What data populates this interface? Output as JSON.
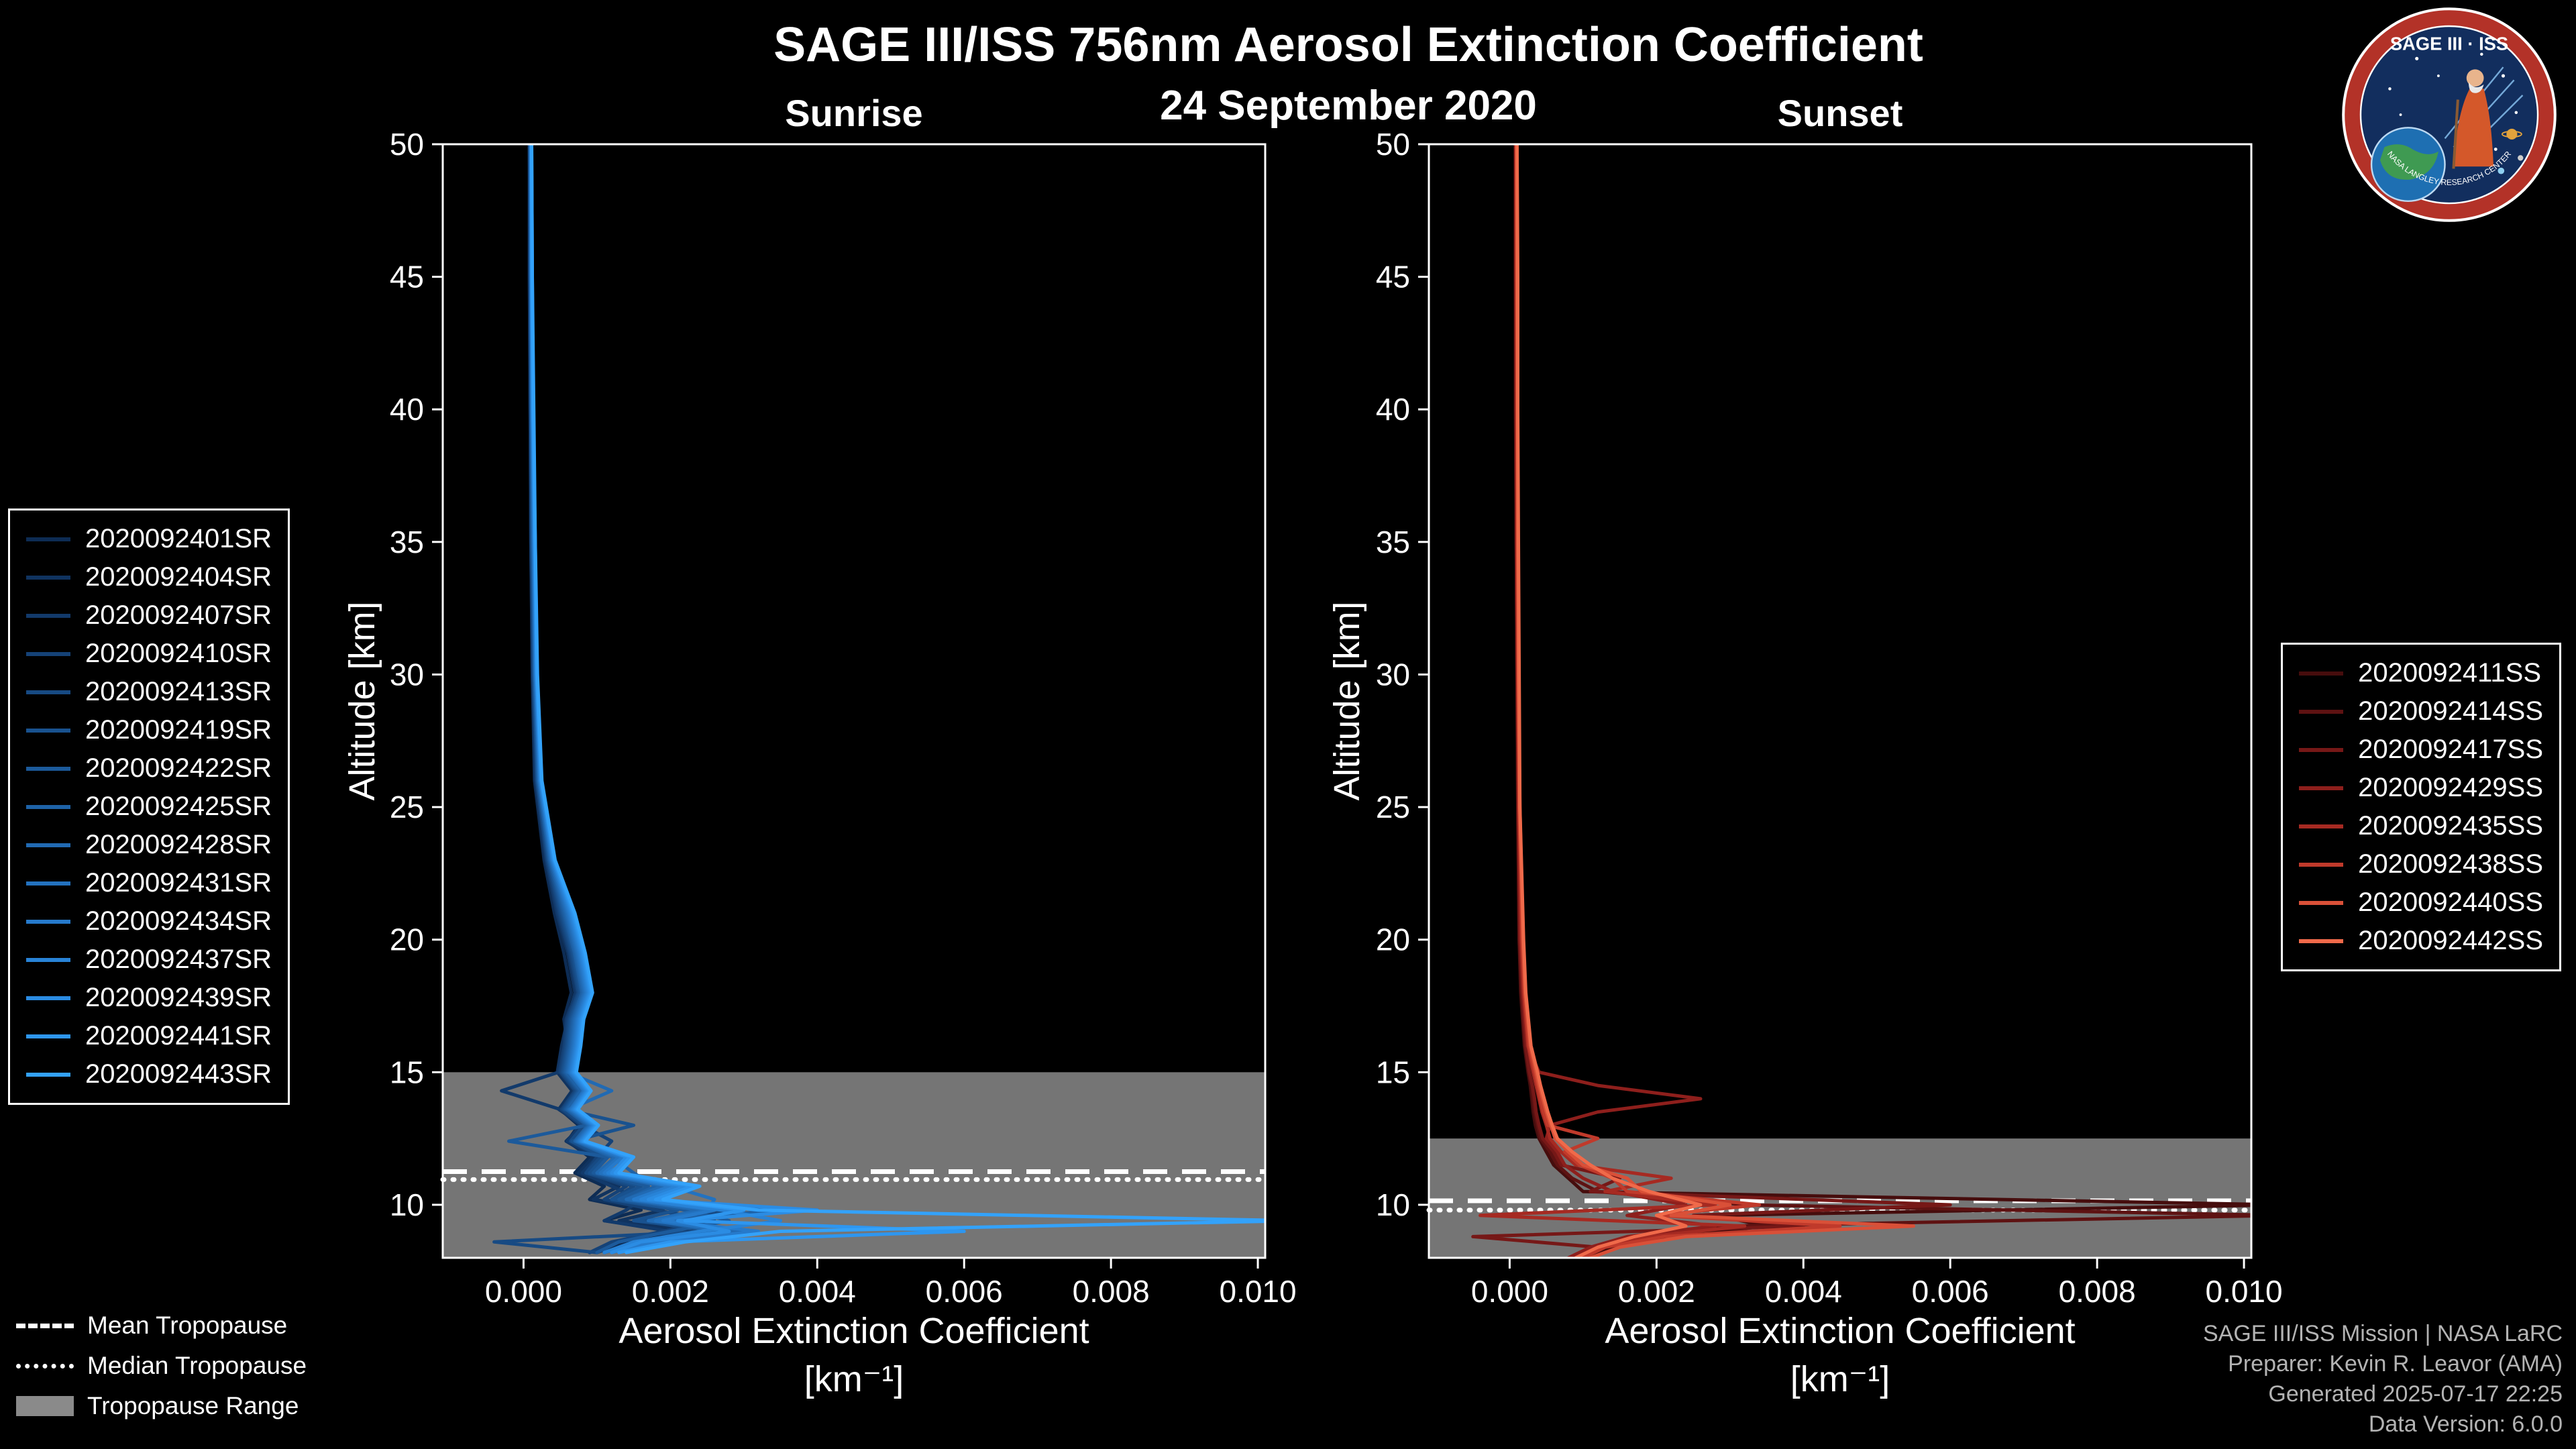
{
  "header": {
    "title": "SAGE III/ISS 756nm Aerosol Extinction Coefficient",
    "date": "24 September 2020"
  },
  "logo": {
    "title": "SAGE III · ISS",
    "arc_text": "NASA LANGLEY RESEARCH CENTER"
  },
  "tropopause_legend": {
    "mean": "Mean Tropopause",
    "median": "Median Tropopause",
    "range": "Tropopause Range"
  },
  "credits": {
    "line1": "SAGE III/ISS Mission | NASA LaRC",
    "line2": "Preparer: Kevin R. Leavor (AMA)",
    "line3": "Generated 2025-07-17 22:25",
    "line4": "Data Version: 6.0.0"
  },
  "chart_data": [
    {
      "id": "sunrise",
      "type": "line",
      "title": "Sunrise",
      "xlabel": "Aerosol Extinction Coefficient",
      "xunit": "[km⁻¹]",
      "ylabel": "Altitude [km]",
      "xlim": [
        -0.0011,
        0.0101
      ],
      "ylim": [
        8,
        50
      ],
      "xticks": [
        0,
        0.002,
        0.004,
        0.006,
        0.008,
        0.01
      ],
      "xtick_labels": [
        "0.000",
        "0.002",
        "0.004",
        "0.006",
        "0.008",
        "0.010"
      ],
      "yticks": [
        10,
        15,
        20,
        25,
        30,
        35,
        40,
        45,
        50
      ],
      "ytick_labels": [
        "10",
        "15",
        "20",
        "25",
        "30",
        "35",
        "40",
        "45",
        "50"
      ],
      "grid": false,
      "legend_position": "outside-left",
      "line_color_ramp": [
        "#0d2c54",
        "#33a2fa"
      ],
      "tropopause": {
        "mean_km": 11.25,
        "median_km": 10.95,
        "range_km": [
          8,
          15
        ],
        "range_color": "#8a8a8a",
        "line_color": "#ffffff"
      },
      "alt_km": [
        50,
        45,
        40,
        35,
        30,
        26,
        23,
        21,
        19.5,
        18,
        17,
        16,
        15,
        14.3,
        13.6,
        13,
        12.4,
        11.8,
        11.2,
        10.7,
        10.2,
        9.8,
        9.4,
        9.0,
        8.6,
        8.2
      ],
      "series": [
        {
          "name": "2020092401SR",
          "color": "#0d2c54",
          "ext": [
            8e-05,
            8e-05,
            9e-05,
            0.0001,
            0.00012,
            0.00015,
            0.00028,
            0.00042,
            0.00055,
            0.00065,
            0.00055,
            0.0006,
            0.0005,
            0.0007,
            0.0005,
            0.00075,
            0.0006,
            0.0009,
            0.0007,
            0.0011,
            0.0009,
            0.0016,
            0.0011,
            0.0021,
            0.0014,
            0.001
          ]
        },
        {
          "name": "2020092404SR",
          "color": "#10335f",
          "ext": [
            8e-05,
            8e-05,
            9e-05,
            0.0001,
            0.00012,
            0.00016,
            0.0003,
            0.00045,
            0.0006,
            0.0007,
            0.0006,
            0.00052,
            0.00046,
            0.00066,
            0.00048,
            0.0008,
            0.00058,
            0.00095,
            0.00075,
            0.0013,
            0.00095,
            0.0019,
            0.0013,
            0.0024,
            0.0015,
            0.0011
          ]
        },
        {
          "name": "2020092407SR",
          "color": "#123a6b",
          "ext": [
            8e-05,
            9e-05,
            0.0001,
            0.0001,
            0.00013,
            0.00017,
            0.00031,
            0.00046,
            0.00062,
            0.00072,
            0.00058,
            0.00055,
            0.00048,
            -0.0003,
            0.0005,
            0.00078,
            0.0006,
            0.001,
            0.0008,
            0.0012,
            0.0016,
            0.0014,
            0.0011,
            0.002,
            0.0013,
            0.0009
          ]
        },
        {
          "name": "2020092410SR",
          "color": "#154277",
          "ext": [
            8e-05,
            9e-05,
            0.0001,
            0.00011,
            0.00013,
            0.00018,
            0.00032,
            0.00048,
            0.00063,
            0.00074,
            0.0006,
            0.00056,
            0.0005,
            0.0007,
            0.00052,
            0.0008,
            0.0012,
            0.001,
            0.00085,
            0.0014,
            0.0011,
            0.0018,
            0.0026,
            0.0019,
            0.0012,
            0.0009
          ]
        },
        {
          "name": "2020092413SR",
          "color": "#174a83",
          "ext": [
            9e-05,
            9e-05,
            0.0001,
            0.00011,
            0.00014,
            0.00018,
            0.00033,
            0.0005,
            0.00065,
            0.00075,
            0.00062,
            0.00058,
            0.00052,
            0.00072,
            0.00054,
            0.00082,
            0.00064,
            0.00105,
            0.00085,
            0.0015,
            0.0012,
            0.003,
            0.0016,
            0.0025,
            -0.0004,
            0.001
          ]
        },
        {
          "name": "2020092419SR",
          "color": "#19528f",
          "ext": [
            9e-05,
            0.0001,
            0.0001,
            0.00012,
            0.00014,
            0.00019,
            0.00034,
            0.00052,
            0.00067,
            0.00077,
            0.00064,
            0.0006,
            0.00054,
            0.00074,
            0.00056,
            0.0015,
            0.00066,
            0.0011,
            0.0009,
            0.0016,
            0.0012,
            0.0021,
            0.0015,
            0.0028,
            0.0016,
            0.0011
          ]
        },
        {
          "name": "2020092422SR",
          "color": "#1c5a9b",
          "ext": [
            9e-05,
            0.0001,
            0.00011,
            0.00012,
            0.00015,
            0.0002,
            0.00035,
            0.00054,
            0.00069,
            0.00079,
            0.00066,
            0.00062,
            0.00056,
            0.00076,
            0.00058,
            0.00086,
            -0.0002,
            0.00115,
            0.00095,
            0.0017,
            0.0013,
            0.0022,
            0.0028,
            0.002,
            0.0013,
            0.001
          ]
        },
        {
          "name": "2020092425SR",
          "color": "#1e62a7",
          "ext": [
            9e-05,
            0.0001,
            0.00011,
            0.00013,
            0.00015,
            0.0002,
            0.00036,
            0.00056,
            0.0007,
            0.0008,
            0.00068,
            0.00064,
            0.00058,
            0.00078,
            0.0006,
            0.00088,
            0.0007,
            0.0012,
            0.0015,
            0.0018,
            0.0014,
            0.0035,
            0.0018,
            0.0026,
            0.0015,
            0.0011
          ]
        },
        {
          "name": "2020092428SR",
          "color": "#216ab3",
          "ext": [
            0.0001,
            0.0001,
            0.00011,
            0.00013,
            0.00016,
            0.00021,
            0.00037,
            0.00058,
            0.00072,
            0.00082,
            0.0007,
            0.00066,
            0.0006,
            0.0012,
            0.00062,
            0.0009,
            0.00072,
            0.00125,
            0.001,
            0.0019,
            0.0014,
            0.0024,
            0.0017,
            0.003,
            0.0017,
            0.0012
          ]
        },
        {
          "name": "2020092431SR",
          "color": "#2372bf",
          "ext": [
            0.0001,
            0.0001,
            0.00012,
            0.00014,
            0.00016,
            0.00022,
            0.00038,
            0.0006,
            0.00074,
            0.00084,
            0.00072,
            0.00068,
            0.00062,
            0.00082,
            0.00064,
            0.00092,
            0.00074,
            0.0013,
            0.00105,
            0.002,
            0.0026,
            0.0025,
            0.0018,
            0.0028,
            0.0016,
            0.0011
          ]
        },
        {
          "name": "2020092434SR",
          "color": "#267acb",
          "ext": [
            0.0001,
            0.00011,
            0.00012,
            0.00014,
            0.00017,
            0.00022,
            0.00039,
            0.00062,
            0.00076,
            0.00086,
            0.00074,
            0.0007,
            0.00064,
            0.00084,
            0.00066,
            0.00094,
            0.00076,
            0.00135,
            0.0011,
            0.002,
            0.0015,
            0.0026,
            0.0019,
            0.0032,
            0.0018,
            0.0012
          ]
        },
        {
          "name": "2020092437SR",
          "color": "#2883d7",
          "ext": [
            0.0001,
            0.00011,
            0.00012,
            0.00015,
            0.00017,
            0.00023,
            0.0004,
            0.00064,
            0.00078,
            0.00088,
            0.00076,
            0.00072,
            0.00066,
            0.00086,
            0.00068,
            0.00096,
            0.00078,
            0.0015,
            0.00115,
            0.0021,
            0.0016,
            0.0027,
            0.0035,
            0.0024,
            0.0015,
            0.0011
          ]
        },
        {
          "name": "2020092439SR",
          "color": "#2b8ce3",
          "ext": [
            0.00011,
            0.00011,
            0.00013,
            0.00015,
            0.00018,
            0.00024,
            0.00041,
            0.00066,
            0.0008,
            0.0009,
            0.00078,
            0.00074,
            0.00068,
            0.00088,
            0.0007,
            0.00098,
            0.0008,
            0.0014,
            0.0012,
            0.0022,
            0.0017,
            0.004,
            0.0021,
            0.0028,
            0.0016,
            0.0012
          ]
        },
        {
          "name": "2020092441SR",
          "color": "#2e96ef",
          "ext": [
            0.00011,
            0.00012,
            0.00013,
            0.00016,
            0.00018,
            0.00024,
            0.00042,
            0.00068,
            0.00082,
            0.00092,
            0.0008,
            0.00076,
            0.0007,
            0.0009,
            0.00072,
            0.001,
            0.00082,
            0.00145,
            0.00125,
            0.0023,
            0.0018,
            0.003,
            0.0022,
            0.006,
            0.002,
            0.0013
          ]
        },
        {
          "name": "2020092443SR",
          "color": "#33a2fa",
          "ext": [
            0.00011,
            0.00012,
            0.00014,
            0.00016,
            0.00019,
            0.00025,
            0.00043,
            0.0007,
            0.00084,
            0.00094,
            0.00082,
            0.00078,
            0.00072,
            0.00092,
            0.00074,
            0.00102,
            0.00084,
            0.0015,
            0.0013,
            0.0024,
            0.0019,
            0.0032,
            0.0105,
            0.0035,
            0.0022,
            0.0014
          ]
        }
      ]
    },
    {
      "id": "sunset",
      "type": "line",
      "title": "Sunset",
      "xlabel": "Aerosol Extinction Coefficient",
      "xunit": "[km⁻¹]",
      "ylabel": "Altitude [km]",
      "xlim": [
        -0.0011,
        0.0101
      ],
      "ylim": [
        8,
        50
      ],
      "xticks": [
        0,
        0.002,
        0.004,
        0.006,
        0.008,
        0.01
      ],
      "xtick_labels": [
        "0.000",
        "0.002",
        "0.004",
        "0.006",
        "0.008",
        "0.010"
      ],
      "yticks": [
        10,
        15,
        20,
        25,
        30,
        35,
        40,
        45,
        50
      ],
      "ytick_labels": [
        "10",
        "15",
        "20",
        "25",
        "30",
        "35",
        "40",
        "45",
        "50"
      ],
      "grid": false,
      "legend_position": "outside-right",
      "line_color_ramp": [
        "#460d0d",
        "#f06a4a"
      ],
      "tropopause": {
        "mean_km": 10.15,
        "median_km": 9.8,
        "range_km": [
          8,
          12.5
        ],
        "range_color": "#8a8a8a",
        "line_color": "#ffffff"
      },
      "alt_km": [
        50,
        45,
        40,
        35,
        30,
        25,
        20,
        18,
        16,
        15,
        14.5,
        14,
        13.5,
        13,
        12.5,
        12,
        11.5,
        11,
        10.5,
        10,
        9.6,
        9.2,
        8.8,
        8.4,
        8.0
      ],
      "series": [
        {
          "name": "2020092411SS",
          "color": "#460d0d",
          "ext": [
            8e-05,
            8e-05,
            8e-05,
            9e-05,
            0.0001,
            0.00011,
            0.00013,
            0.00015,
            0.0002,
            0.00025,
            0.00028,
            0.0003,
            0.00032,
            0.00035,
            0.0004,
            0.0005,
            0.0006,
            0.0008,
            0.001,
            0.0105,
            0.0028,
            0.0035,
            0.0022,
            0.0014,
            0.001
          ]
        },
        {
          "name": "2020092414SS",
          "color": "#5e1212",
          "ext": [
            8e-05,
            8e-05,
            8e-05,
            9e-05,
            0.0001,
            0.00011,
            0.00013,
            0.00016,
            0.00021,
            0.00026,
            0.0003,
            0.00032,
            0.00034,
            0.00038,
            0.00042,
            0.00055,
            0.00065,
            0.00085,
            0.0012,
            0.0032,
            0.0105,
            0.003,
            0.0018,
            0.0013,
            0.0009
          ]
        },
        {
          "name": "2020092417SS",
          "color": "#761817",
          "ext": [
            8e-05,
            8e-05,
            9e-05,
            9e-05,
            0.0001,
            0.00012,
            0.00014,
            0.00017,
            0.00022,
            0.00027,
            0.00031,
            0.00034,
            0.00036,
            0.0004,
            0.00045,
            0.0006,
            0.0007,
            0.0015,
            0.0011,
            0.006,
            0.0025,
            0.004,
            -0.0005,
            0.0012,
            0.0009
          ]
        },
        {
          "name": "2020092429SS",
          "color": "#8e1f1c",
          "ext": [
            8e-05,
            9e-05,
            9e-05,
            0.0001,
            0.00011,
            0.00012,
            0.00015,
            0.00018,
            0.00024,
            0.0004,
            0.0012,
            0.0026,
            0.0012,
            0.00055,
            0.0005,
            0.00065,
            0.00075,
            0.001,
            0.0014,
            0.0024,
            0.0016,
            0.0028,
            0.0016,
            0.0011,
            0.0008
          ]
        },
        {
          "name": "2020092435SS",
          "color": "#a62a22",
          "ext": [
            9e-05,
            9e-05,
            0.0001,
            0.0001,
            0.00011,
            0.00013,
            0.00016,
            0.00019,
            0.00025,
            0.00032,
            0.00036,
            0.0004,
            0.00044,
            0.0005,
            0.00055,
            0.0007,
            0.0009,
            0.0022,
            0.0013,
            0.0028,
            -0.0004,
            0.0032,
            0.0019,
            0.0012,
            0.0009
          ]
        },
        {
          "name": "2020092438SS",
          "color": "#c03a2b",
          "ext": [
            9e-05,
            0.0001,
            0.0001,
            0.00011,
            0.00012,
            0.00013,
            0.00017,
            0.0002,
            0.00026,
            0.00034,
            0.00038,
            0.00042,
            0.00046,
            0.00052,
            0.0012,
            0.00075,
            0.00095,
            0.0014,
            0.0016,
            0.0034,
            0.002,
            0.0045,
            0.0021,
            0.0013,
            0.001
          ]
        },
        {
          "name": "2020092440SS",
          "color": "#d95038",
          "ext": [
            0.0001,
            0.0001,
            0.00011,
            0.00011,
            0.00012,
            0.00014,
            0.00018,
            0.00021,
            0.00028,
            0.00036,
            0.0004,
            0.00045,
            0.0005,
            0.00056,
            0.00062,
            0.0008,
            0.001,
            0.0016,
            0.0018,
            0.003,
            0.0022,
            0.0055,
            0.0024,
            0.0015,
            0.0011
          ]
        },
        {
          "name": "2020092442SS",
          "color": "#f06a4a",
          "ext": [
            0.0001,
            0.00011,
            0.00011,
            0.00012,
            0.00013,
            0.00014,
            0.00019,
            0.00022,
            0.00029,
            0.00038,
            0.00042,
            0.00047,
            0.00052,
            0.00058,
            0.00065,
            0.00085,
            0.0011,
            0.0014,
            0.0019,
            0.0026,
            0.002,
            0.0024,
            0.0017,
            0.0012,
            0.0009
          ]
        }
      ]
    }
  ]
}
